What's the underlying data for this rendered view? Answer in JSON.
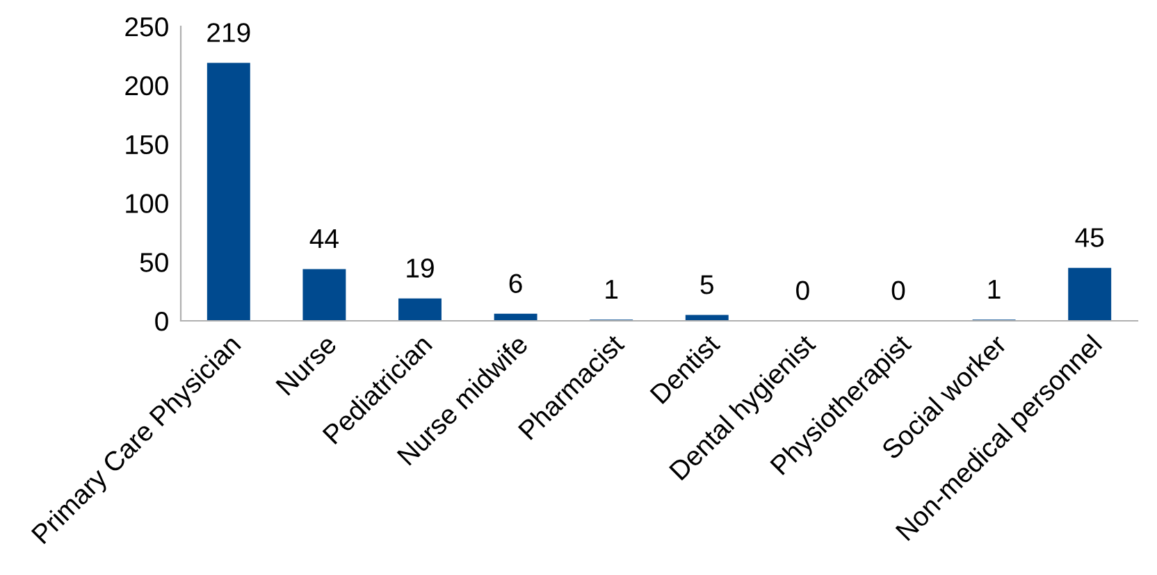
{
  "chart_data": {
    "type": "bar",
    "categories": [
      "Primary Care Physician",
      "Nurse",
      "Pediatrician",
      "Nurse midwife",
      "Pharmacist",
      "Dentist",
      "Dental hygienist",
      "Physiotherapist",
      "Social worker",
      "Non-medical personnel"
    ],
    "values": [
      219,
      44,
      19,
      6,
      1,
      5,
      0,
      0,
      1,
      45
    ],
    "color": "#004a8f",
    "ylim": [
      0,
      250
    ],
    "yticks": [
      0,
      50,
      100,
      150,
      200,
      250
    ],
    "data_labels": true,
    "grid": false,
    "legend": false
  }
}
